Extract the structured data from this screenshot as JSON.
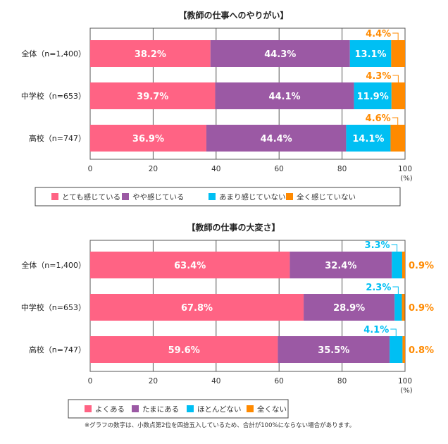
{
  "chart_data": [
    {
      "type": "bar",
      "orientation": "horizontal",
      "stacked": true,
      "title": "【教師の仕事へのやりがい】",
      "categories": [
        "全体（n=1,400）",
        "中学校（n=653）",
        "高校（n=747）"
      ],
      "series": [
        {
          "name": "とても感じている",
          "color": "#ff6384",
          "values": [
            38.2,
            39.7,
            36.9
          ],
          "labels": [
            "38.2%",
            "39.7%",
            "36.9%"
          ]
        },
        {
          "name": "やや感じている",
          "color": "#9b59a4",
          "values": [
            44.3,
            44.1,
            44.4
          ],
          "labels": [
            "44.3%",
            "44.1%",
            "44.4%"
          ]
        },
        {
          "name": "あまり感じていない",
          "color": "#00bff3",
          "values": [
            13.1,
            11.9,
            14.1
          ],
          "labels": [
            "13.1%",
            "11.9%",
            "14.1%"
          ]
        },
        {
          "name": "全く感じていない",
          "color": "#ff8a00",
          "values": [
            4.4,
            4.3,
            4.6
          ],
          "labels": [
            "4.4%",
            "4.3%",
            "4.6%"
          ]
        }
      ],
      "xlim": [
        0,
        100
      ],
      "xticks": [
        "0",
        "20",
        "40",
        "60",
        "80",
        "100"
      ],
      "xunit": "(%)",
      "grid": true,
      "legend": "bottom"
    },
    {
      "type": "bar",
      "orientation": "horizontal",
      "stacked": true,
      "title": "【教師の仕事の大変さ】",
      "categories": [
        "全体（n=1,400）",
        "中学校（n=653）",
        "高校（n=747）"
      ],
      "series": [
        {
          "name": "よくある",
          "color": "#ff6384",
          "values": [
            63.4,
            67.8,
            59.6
          ],
          "labels": [
            "63.4%",
            "67.8%",
            "59.6%"
          ]
        },
        {
          "name": "たまにある",
          "color": "#9b59a4",
          "values": [
            32.4,
            28.9,
            35.5
          ],
          "labels": [
            "32.4%",
            "28.9%",
            "35.5%"
          ]
        },
        {
          "name": "ほとんどない",
          "color": "#00bff3",
          "values": [
            3.3,
            2.3,
            4.1
          ],
          "labels": [
            "3.3%",
            "2.3%",
            "4.1%"
          ]
        },
        {
          "name": "全くない",
          "color": "#ff8a00",
          "values": [
            0.9,
            0.9,
            0.8
          ],
          "labels": [
            "0.9%",
            "0.9%",
            "0.8%"
          ]
        }
      ],
      "xlim": [
        0,
        100
      ],
      "xticks": [
        "0",
        "20",
        "40",
        "60",
        "80",
        "100"
      ],
      "xunit": "(%)",
      "grid": true,
      "legend": "bottom"
    }
  ],
  "footnote": "※グラフの数字は、小数点第2位を四捨五入しているため、合計が100%にならない場合があります。"
}
